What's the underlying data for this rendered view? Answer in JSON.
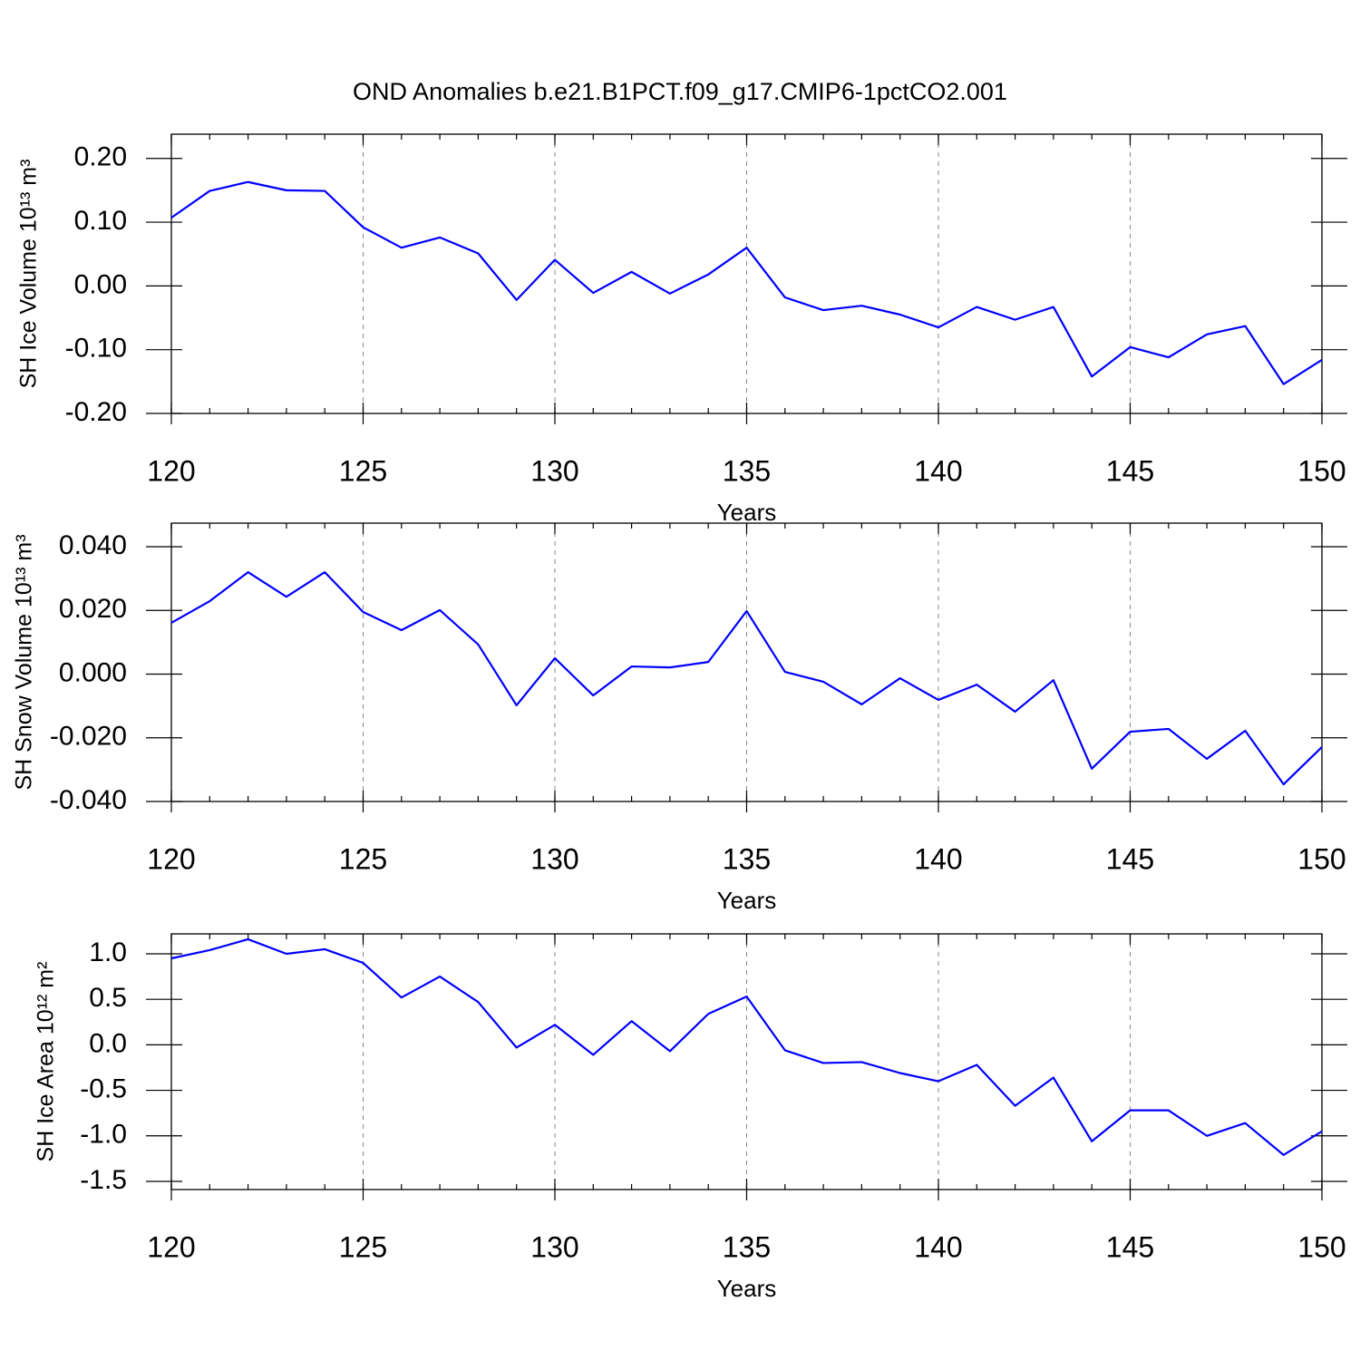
{
  "title": "OND Anomalies b.e21.B1PCT.f09_g17.CMIP6-1pctCO2.001",
  "chart_data": [
    {
      "type": "line",
      "ylabel": "SH Ice Volume 10¹³ m³",
      "xlabel": "Years",
      "x": [
        120,
        121,
        122,
        123,
        124,
        125,
        126,
        127,
        128,
        129,
        130,
        131,
        132,
        133,
        134,
        135,
        136,
        137,
        138,
        139,
        140,
        141,
        142,
        143,
        144,
        145,
        146,
        147,
        148,
        149,
        150
      ],
      "series": [
        {
          "color": "#0000ff",
          "values": [
            0.107,
            0.149,
            0.163,
            0.15,
            0.149,
            0.092,
            0.06,
            0.076,
            0.051,
            -0.022,
            0.041,
            -0.011,
            0.022,
            -0.012,
            0.018,
            0.06,
            -0.018,
            -0.038,
            -0.031,
            -0.045,
            -0.065,
            -0.033,
            -0.053,
            -0.033,
            -0.142,
            -0.096,
            -0.112,
            -0.076,
            -0.063,
            -0.154,
            -0.116
          ]
        }
      ],
      "xlim": [
        120,
        150
      ],
      "xticks": [
        120,
        125,
        130,
        135,
        140,
        145,
        150
      ],
      "ylim": [
        -0.2,
        0.238
      ],
      "yticks": [
        {
          "value": -0.2,
          "label": "-0.20"
        },
        {
          "value": -0.1,
          "label": "-0.10"
        },
        {
          "value": 0,
          "label": "0.00"
        },
        {
          "value": 0.1,
          "label": "0.10"
        },
        {
          "value": 0.2,
          "label": "0.20"
        }
      ],
      "grid": true
    },
    {
      "type": "line",
      "ylabel": "SH Snow Volume 10¹³ m³",
      "xlabel": "Years",
      "x": [
        120,
        121,
        122,
        123,
        124,
        125,
        126,
        127,
        128,
        129,
        130,
        131,
        132,
        133,
        134,
        135,
        136,
        137,
        138,
        139,
        140,
        141,
        142,
        143,
        144,
        145,
        146,
        147,
        148,
        149,
        150
      ],
      "series": [
        {
          "color": "#0000ff",
          "values": [
            0.0161,
            0.0229,
            0.032,
            0.0243,
            0.032,
            0.0195,
            0.0138,
            0.0201,
            0.0093,
            -0.0098,
            0.005,
            -0.0067,
            0.0024,
            0.0021,
            0.0038,
            0.0198,
            0.0007,
            -0.0024,
            -0.0095,
            -0.0013,
            -0.0081,
            -0.0033,
            -0.0118,
            -0.0019,
            -0.0297,
            -0.0181,
            -0.0172,
            -0.0266,
            -0.0178,
            -0.0346,
            -0.0229
          ]
        }
      ],
      "xlim": [
        120,
        150
      ],
      "xticks": [
        120,
        125,
        130,
        135,
        140,
        145,
        150
      ],
      "ylim": [
        -0.04,
        0.0474
      ],
      "yticks": [
        {
          "value": -0.04,
          "label": "-0.040"
        },
        {
          "value": -0.02,
          "label": "-0.020"
        },
        {
          "value": 0,
          "label": "0.000"
        },
        {
          "value": 0.02,
          "label": "0.020"
        },
        {
          "value": 0.04,
          "label": "0.040"
        }
      ],
      "grid": true
    },
    {
      "type": "line",
      "ylabel": "SH Ice Area 10¹² m²",
      "xlabel": "Years",
      "x": [
        120,
        121,
        122,
        123,
        124,
        125,
        126,
        127,
        128,
        129,
        130,
        131,
        132,
        133,
        134,
        135,
        136,
        137,
        138,
        139,
        140,
        141,
        142,
        143,
        144,
        145,
        146,
        147,
        148,
        149,
        150
      ],
      "series": [
        {
          "color": "#0000ff",
          "values": [
            0.95,
            1.04,
            1.16,
            1.0,
            1.05,
            0.9,
            0.52,
            0.75,
            0.47,
            -0.03,
            0.22,
            -0.11,
            0.26,
            -0.07,
            0.34,
            0.53,
            -0.06,
            -0.2,
            -0.19,
            -0.31,
            -0.4,
            -0.22,
            -0.67,
            -0.36,
            -1.06,
            -0.72,
            -0.72,
            -1.0,
            -0.86,
            -1.21,
            -0.95
          ]
        }
      ],
      "xlim": [
        120,
        150
      ],
      "xticks": [
        120,
        125,
        130,
        135,
        140,
        145,
        150
      ],
      "ylim": [
        -1.59,
        1.219
      ],
      "yticks": [
        -1.5,
        {
          "value": -1,
          "label": "-1.0"
        },
        -0.5,
        {
          "value": 0,
          "label": "0.0"
        },
        0.5,
        {
          "value": 1,
          "label": "1.0"
        }
      ],
      "grid": true
    }
  ]
}
